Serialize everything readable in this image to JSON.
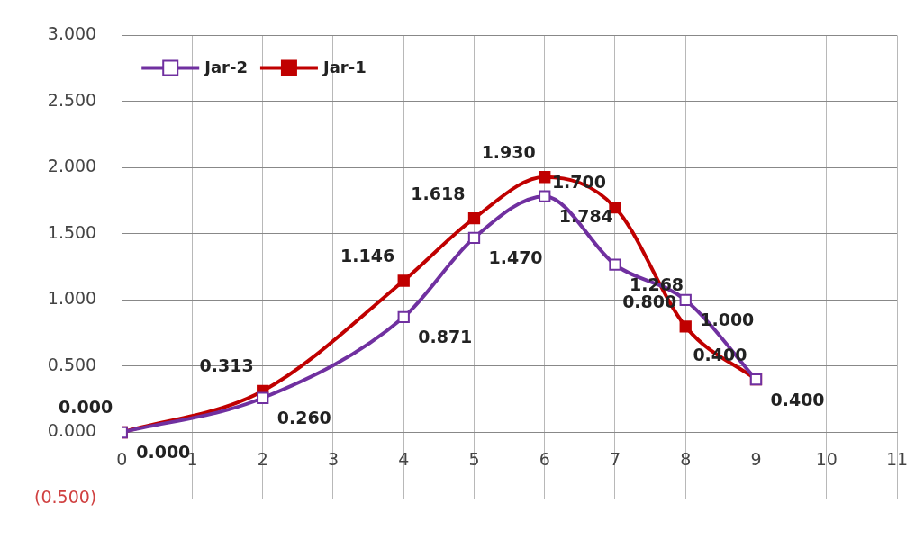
{
  "chart_data": {
    "type": "line",
    "x": [
      0,
      2,
      4,
      5,
      6,
      7,
      8,
      9
    ],
    "series": [
      {
        "name": "Jar-2",
        "color": "#7030a0",
        "values": [
          0.0,
          0.26,
          0.871,
          1.47,
          1.784,
          1.268,
          1.0,
          0.4
        ],
        "value_labels": [
          "0.000",
          "0.260",
          "0.871",
          "1.470",
          "1.784",
          "1.268",
          "1.000",
          "0.400"
        ]
      },
      {
        "name": "Jar-1",
        "color": "#c00000",
        "values": [
          0.0,
          0.313,
          1.146,
          1.618,
          1.93,
          1.7,
          0.8,
          0.4
        ],
        "value_labels": [
          "0.000",
          "0.313",
          "1.146",
          "1.618",
          "1.930",
          "1.700",
          "0.800",
          "0.400"
        ]
      }
    ],
    "xlim": [
      0,
      11
    ],
    "xticks": [
      0,
      1,
      2,
      3,
      4,
      5,
      6,
      7,
      8,
      9,
      10,
      11
    ],
    "ylim": [
      -0.5,
      3
    ],
    "yticks": [
      {
        "value": -0.5,
        "label": "(0.500)"
      },
      {
        "value": 0,
        "label": "0.000"
      },
      {
        "value": 0.5,
        "label": "0.500"
      },
      {
        "value": 1,
        "label": "1.000"
      },
      {
        "value": 1.5,
        "label": "1.500"
      },
      {
        "value": 2,
        "label": "2.000"
      },
      {
        "value": 2.5,
        "label": "2.500"
      },
      {
        "value": 3,
        "label": "3.000"
      }
    ],
    "grid": true,
    "legend": "top left",
    "marker": "square",
    "data_labels": true
  }
}
